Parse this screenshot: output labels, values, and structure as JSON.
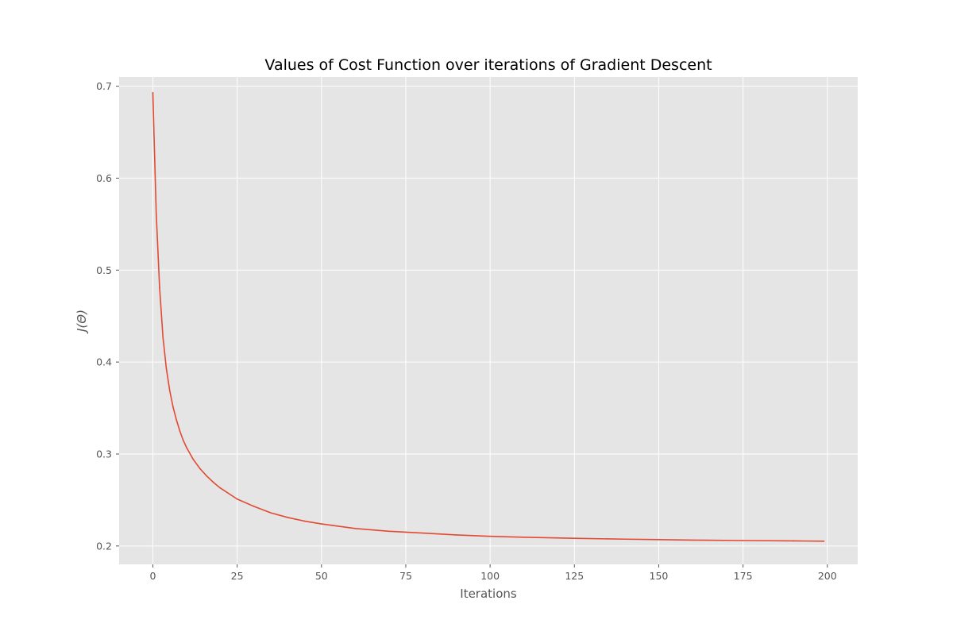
{
  "chart_data": {
    "type": "line",
    "title": "Values of Cost Function over iterations of Gradient Descent",
    "xlabel": "Iterations",
    "ylabel": "J(Θ)",
    "xlim": [
      -10,
      209
    ],
    "ylim": [
      0.18,
      0.71
    ],
    "x_ticks": [
      0,
      25,
      50,
      75,
      100,
      125,
      150,
      175,
      200
    ],
    "y_ticks": [
      0.2,
      0.3,
      0.4,
      0.5,
      0.6,
      0.7
    ],
    "x_tick_labels": [
      "0",
      "25",
      "50",
      "75",
      "100",
      "125",
      "150",
      "175",
      "200"
    ],
    "y_tick_labels": [
      "0.2",
      "0.3",
      "0.4",
      "0.5",
      "0.6",
      "0.7"
    ],
    "grid": true,
    "legend": "none",
    "style": {
      "background": "#e5e5e5",
      "grid_color": "#ffffff",
      "line_color": "#e24a33"
    },
    "series": [
      {
        "x": [
          0,
          1,
          2,
          3,
          4,
          5,
          6,
          7,
          8,
          9,
          10,
          12,
          14,
          16,
          18,
          20,
          25,
          30,
          35,
          40,
          45,
          50,
          60,
          70,
          75,
          80,
          90,
          100,
          110,
          125,
          140,
          150,
          160,
          175,
          190,
          199
        ],
        "values": [
          0.693,
          0.562,
          0.481,
          0.427,
          0.393,
          0.369,
          0.351,
          0.337,
          0.325,
          0.315,
          0.307,
          0.294,
          0.284,
          0.276,
          0.269,
          0.263,
          0.251,
          0.243,
          0.236,
          0.231,
          0.227,
          0.224,
          0.219,
          0.216,
          0.215,
          0.214,
          0.212,
          0.2105,
          0.2095,
          0.2083,
          0.2074,
          0.2069,
          0.2064,
          0.2059,
          0.2055,
          0.2052
        ]
      }
    ]
  }
}
